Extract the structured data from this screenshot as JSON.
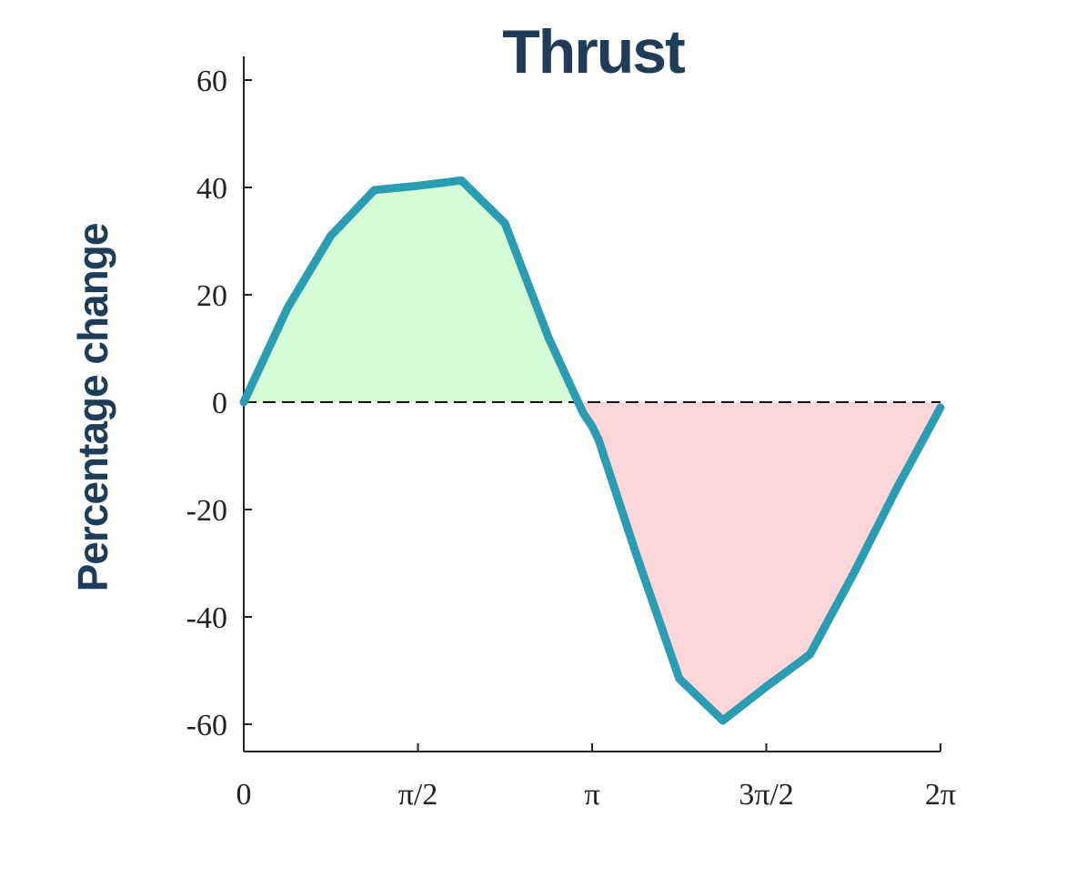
{
  "chart_data": {
    "type": "line",
    "title": "Thrust",
    "xlabel": "",
    "ylabel": "Percentage change",
    "xlim": [
      0,
      6.2832
    ],
    "ylim": [
      -65,
      65
    ],
    "x_ticks": [
      {
        "value": 0,
        "label": "0"
      },
      {
        "value": 1.5708,
        "label": "π/2"
      },
      {
        "value": 3.1416,
        "label": "π"
      },
      {
        "value": 4.7124,
        "label": "3π/2"
      },
      {
        "value": 6.2832,
        "label": "2π"
      }
    ],
    "y_ticks": [
      {
        "value": 60,
        "label": "60"
      },
      {
        "value": 40,
        "label": "40"
      },
      {
        "value": 20,
        "label": "20"
      },
      {
        "value": 0,
        "label": "0"
      },
      {
        "value": -20,
        "label": "-20"
      },
      {
        "value": -40,
        "label": "-40"
      },
      {
        "value": -60,
        "label": "-60"
      }
    ],
    "series": [
      {
        "x": [
          0,
          0.393,
          0.785,
          1.178,
          1.571,
          1.963,
          2.356,
          2.749,
          3.06,
          3.142,
          3.2,
          3.534,
          3.927,
          4.32,
          4.712,
          5.105,
          5.498,
          5.89,
          6.283
        ],
        "values": [
          0,
          17.5,
          31,
          39.5,
          40.3,
          41.3,
          33.3,
          12,
          -2,
          -4.5,
          -7,
          -28,
          -51.5,
          -59.3,
          -53,
          -47,
          -32,
          -16,
          -1
        ],
        "color": "#2a9db3"
      }
    ],
    "fill_positive_color": "#d6fcd6",
    "fill_negative_color": "#fdd6d9",
    "zero_line": "dashed",
    "grid": false
  }
}
